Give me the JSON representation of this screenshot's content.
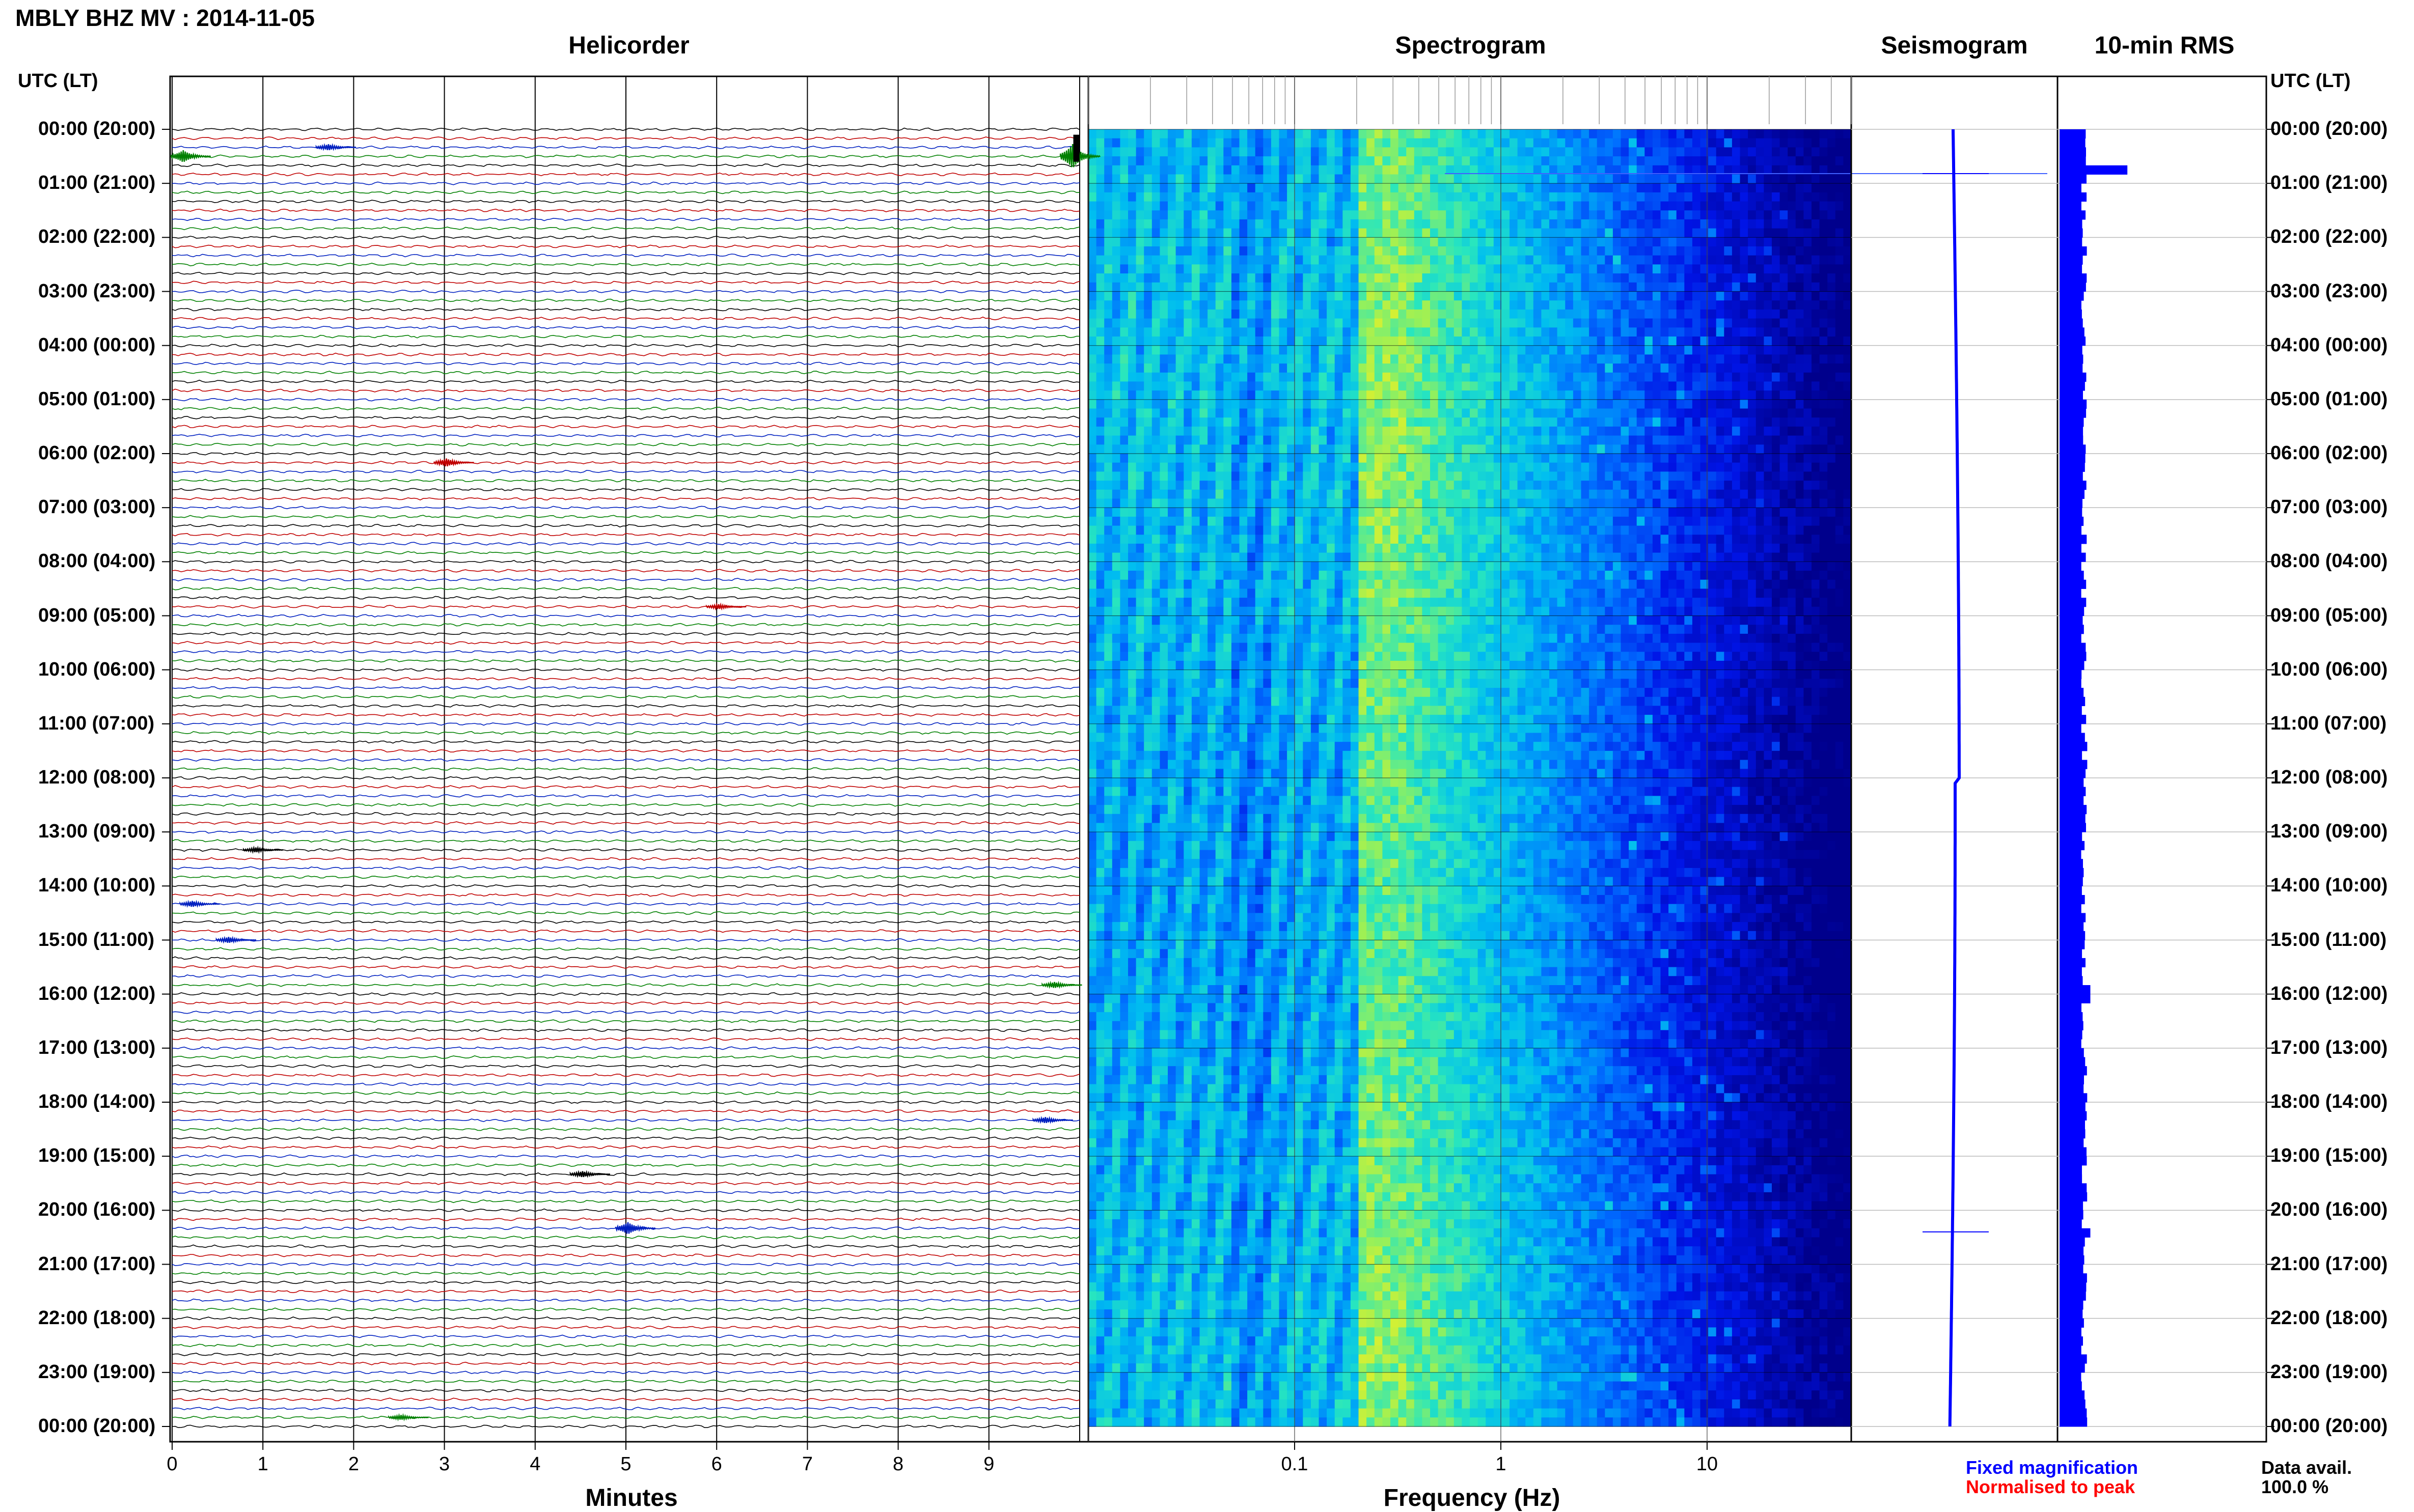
{
  "title": "MBLY BHZ MV : 2014-11-05",
  "panels": {
    "helicorder": "Helicorder",
    "spectrogram": "Spectrogram",
    "seismogram": "Seismogram",
    "rms": "10-min RMS"
  },
  "utc_header": "UTC (LT)",
  "hour_labels": [
    "00:00 (20:00)",
    "01:00 (21:00)",
    "02:00 (22:00)",
    "03:00 (23:00)",
    "04:00 (00:00)",
    "05:00 (01:00)",
    "06:00 (02:00)",
    "07:00 (03:00)",
    "08:00 (04:00)",
    "09:00 (05:00)",
    "10:00 (06:00)",
    "11:00 (07:00)",
    "12:00 (08:00)",
    "13:00 (09:00)",
    "14:00 (10:00)",
    "15:00 (11:00)",
    "16:00 (12:00)",
    "17:00 (13:00)",
    "18:00 (14:00)",
    "19:00 (15:00)",
    "20:00 (16:00)",
    "21:00 (17:00)",
    "22:00 (18:00)",
    "23:00 (19:00)",
    "00:00 (20:00)"
  ],
  "x_axes": {
    "minutes_label": "Minutes",
    "minutes_ticks": [
      "0",
      "1",
      "2",
      "3",
      "4",
      "5",
      "6",
      "7",
      "8",
      "9"
    ],
    "frequency_label": "Frequency (Hz)",
    "frequency_ticks": [
      "0.1",
      "1",
      "10"
    ]
  },
  "legend": {
    "fixed": "Fixed magnification",
    "normalised": "Normalised to peak",
    "avail_label": "Data avail.",
    "avail_value": "100.0 %"
  },
  "colors": {
    "trace_cycle": [
      "#000000",
      "#c00000",
      "#0020c0",
      "#008000"
    ],
    "fixed": "#0000ff",
    "normalised": "#ff0000",
    "rms": "#0000ff",
    "seismogram": "#0000ff"
  },
  "chart_data": [
    {
      "type": "line",
      "title": "Helicorder",
      "xlabel": "Minutes",
      "xlim": [
        0,
        10
      ],
      "rows_per_hour": 6,
      "hours": 24,
      "events": [
        {
          "hour": 0.5,
          "minute": 0.1,
          "amp": 3
        },
        {
          "hour": 0.5,
          "minute": 9.9,
          "amp": 6
        },
        {
          "hour": 0.33,
          "minute": 1.7,
          "amp": 1.5
        },
        {
          "hour": 6.1,
          "minute": 3.0,
          "amp": 2
        },
        {
          "hour": 8.83,
          "minute": 6.0,
          "amp": 1.2
        },
        {
          "hour": 13.3,
          "minute": 0.9,
          "amp": 1.2
        },
        {
          "hour": 14.3,
          "minute": 0.2,
          "amp": 1.5
        },
        {
          "hour": 15.0,
          "minute": 0.6,
          "amp": 1.5
        },
        {
          "hour": 15.83,
          "minute": 9.7,
          "amp": 1.5
        },
        {
          "hour": 18.33,
          "minute": 9.6,
          "amp": 1.5
        },
        {
          "hour": 19.3,
          "minute": 4.5,
          "amp": 1.5
        },
        {
          "hour": 20.33,
          "minute": 5.0,
          "amp": 3
        },
        {
          "hour": 23.83,
          "minute": 2.5,
          "amp": 1.2
        }
      ]
    },
    {
      "type": "heatmap",
      "title": "Spectrogram",
      "xlabel": "Frequency (Hz)",
      "x_scale": "log",
      "xlim": [
        0.01,
        50
      ],
      "x_ticks": [
        0.1,
        1,
        10
      ],
      "peak_band_hz": [
        0.2,
        0.3
      ]
    },
    {
      "type": "line",
      "title": "Seismogram",
      "spike_hours": [
        0.82,
        20.4
      ]
    },
    {
      "type": "bar",
      "title": "10-min RMS",
      "peak_hour": 0.7,
      "typical_level": 0.2,
      "peak_level": 0.55
    }
  ]
}
